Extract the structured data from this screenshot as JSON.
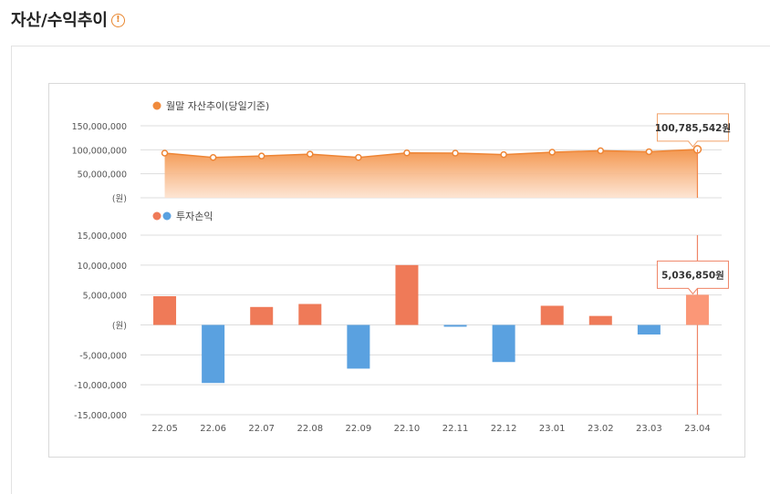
{
  "page": {
    "title": "자산/수익추이",
    "info_icon": "exclamation-circle-icon"
  },
  "chart_data": [
    {
      "type": "area",
      "legend_label": "월말 자산추이(당일기준)",
      "legend_color": "#f08a3c",
      "x": [
        "22.05",
        "22.06",
        "22.07",
        "22.08",
        "22.09",
        "22.10",
        "22.11",
        "22.12",
        "23.01",
        "23.02",
        "23.03",
        "23.04"
      ],
      "values": [
        93000000,
        84000000,
        87000000,
        91000000,
        84000000,
        93500000,
        93000000,
        90000000,
        95000000,
        98000000,
        96000000,
        100785542
      ],
      "ylim": [
        0,
        150000000
      ],
      "yticks": [
        "150,000,000",
        "100,000,000",
        "50,000,000",
        "(원)"
      ],
      "ytick_values": [
        150000000,
        100000000,
        50000000,
        0
      ],
      "tooltip": "100,785,542원",
      "color": "#f39247"
    },
    {
      "type": "bar",
      "legend_label": "투자손익",
      "legend_colors": [
        "#ef7a58",
        "#5aa1e0"
      ],
      "x": [
        "22.05",
        "22.06",
        "22.07",
        "22.08",
        "22.09",
        "22.10",
        "22.11",
        "22.12",
        "23.01",
        "23.02",
        "23.03",
        "23.04"
      ],
      "values": [
        4800000,
        -9700000,
        3000000,
        3500000,
        -7300000,
        10000000,
        -300000,
        -6200000,
        3200000,
        1500000,
        -1600000,
        5036850
      ],
      "ylim": [
        -15000000,
        15000000
      ],
      "yticks": [
        "15,000,000",
        "10,000,000",
        "5,000,000",
        "(원)",
        "-5,000,000",
        "-10,000,000",
        "-15,000,000"
      ],
      "ytick_values": [
        15000000,
        10000000,
        5000000,
        0,
        -5000000,
        -10000000,
        -15000000
      ],
      "tooltip": "5,036,850원",
      "positive_color": "#ef7a58",
      "negative_color": "#5aa1e0",
      "highlight_color": "#fb9777"
    }
  ]
}
